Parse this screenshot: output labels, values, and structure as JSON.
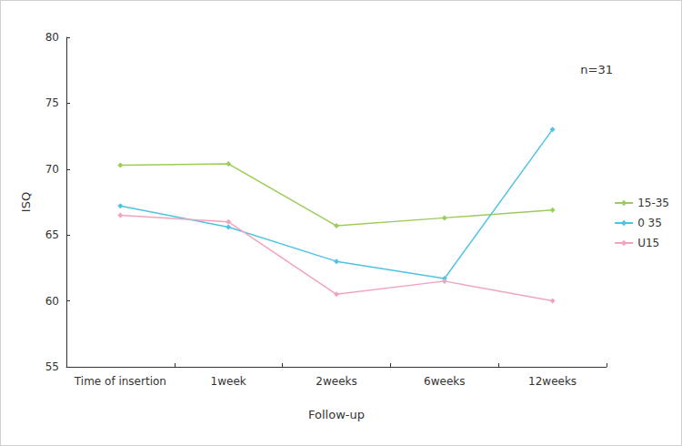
{
  "chart_data": {
    "type": "line",
    "x_label": "Follow-up",
    "y_label": "ISQ",
    "annotation": "n=31",
    "categories": [
      "Time of insertion",
      "1week",
      "2weeks",
      "6weeks",
      "12weeks"
    ],
    "series": [
      {
        "name": "15-35",
        "color": "#9ccc5c",
        "values": [
          70.3,
          70.4,
          65.7,
          66.3,
          66.9
        ]
      },
      {
        "name": "0 35",
        "color": "#4fc3e3",
        "values": [
          67.2,
          65.6,
          63.0,
          61.7,
          73.0
        ]
      },
      {
        "name": "U15",
        "color": "#f4a3bf",
        "values": [
          66.5,
          66.0,
          60.5,
          61.5,
          60.0
        ]
      }
    ],
    "ylim": [
      55,
      80
    ],
    "yticks": [
      55,
      60,
      65,
      70,
      75,
      80
    ],
    "grid": false,
    "legend": "right",
    "marker": "diamond"
  }
}
